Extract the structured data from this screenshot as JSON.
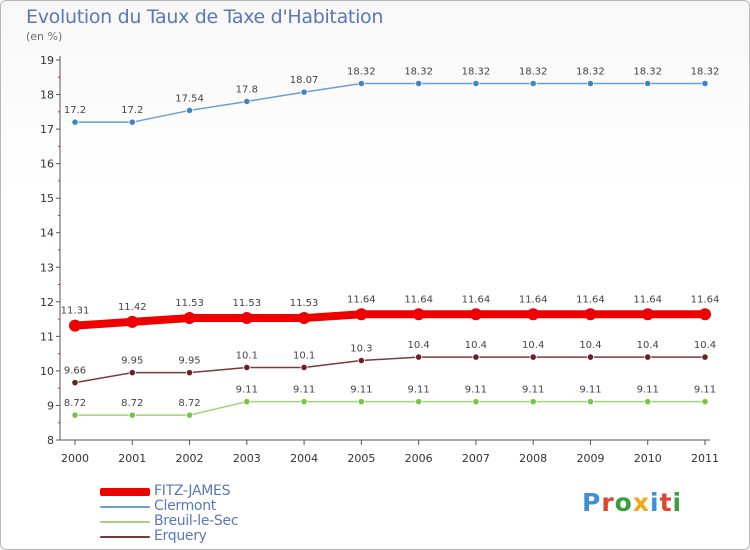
{
  "header": {
    "title": "Evolution du Taux de Taxe d'Habitation",
    "unit": "(en %)"
  },
  "brand": {
    "letters": [
      "P",
      "r",
      "o",
      "x",
      "i",
      "t",
      "i"
    ],
    "colors": [
      "#3f8fd6",
      "#e0452f",
      "#3a9f3a",
      "#f0a81a",
      "#3f8fd6",
      "#e0452f",
      "#3a9f3a"
    ]
  },
  "chart_data": {
    "type": "line",
    "x": [
      "2000",
      "2001",
      "2002",
      "2003",
      "2004",
      "2005",
      "2006",
      "2007",
      "2008",
      "2009",
      "2010",
      "2011"
    ],
    "ylim": [
      8,
      19
    ],
    "yticks": [
      "8",
      "9",
      "10",
      "11",
      "12",
      "13",
      "14",
      "15",
      "16",
      "17",
      "18",
      "19"
    ],
    "grid": false,
    "legend_position": "bottom-left",
    "series": [
      {
        "name": "FITZ-JAMES",
        "color": "#ee0000",
        "width": 8,
        "values": [
          11.31,
          11.42,
          11.53,
          11.53,
          11.53,
          11.64,
          11.64,
          11.64,
          11.64,
          11.64,
          11.64,
          11.64
        ],
        "labels": [
          "11.31",
          "11.42",
          "11.53",
          "11.53",
          "11.53",
          "11.64",
          "11.64",
          "11.64",
          "11.64",
          "11.64",
          "11.64",
          "11.64"
        ]
      },
      {
        "name": "Clermont",
        "color": "#6a9fcf",
        "marker": "#3d85c6",
        "width": 1.5,
        "values": [
          17.2,
          17.2,
          17.54,
          17.8,
          18.07,
          18.32,
          18.32,
          18.32,
          18.32,
          18.32,
          18.32,
          18.32
        ],
        "labels": [
          "17.2",
          "17.2",
          "17.54",
          "17.8",
          "18.07",
          "18.32",
          "18.32",
          "18.32",
          "18.32",
          "18.32",
          "18.32",
          "18.32"
        ]
      },
      {
        "name": "Breuil-le-Sec",
        "color": "#9fd47a",
        "marker": "#7cc24a",
        "width": 1.5,
        "values": [
          8.72,
          8.72,
          8.72,
          9.11,
          9.11,
          9.11,
          9.11,
          9.11,
          9.11,
          9.11,
          9.11,
          9.11
        ],
        "labels": [
          "8.72",
          "8.72",
          "8.72",
          "9.11",
          "9.11",
          "9.11",
          "9.11",
          "9.11",
          "9.11",
          "9.11",
          "9.11",
          "9.11"
        ]
      },
      {
        "name": "Erquery",
        "color": "#7a3a3a",
        "marker": "#6a1f24",
        "width": 1.5,
        "values": [
          9.66,
          9.95,
          9.95,
          10.1,
          10.1,
          10.3,
          10.4,
          10.4,
          10.4,
          10.4,
          10.4,
          10.4
        ],
        "labels": [
          "9.66",
          "9.95",
          "9.95",
          "10.1",
          "10.1",
          "10.3",
          "10.4",
          "10.4",
          "10.4",
          "10.4",
          "10.4",
          "10.4"
        ]
      }
    ]
  }
}
